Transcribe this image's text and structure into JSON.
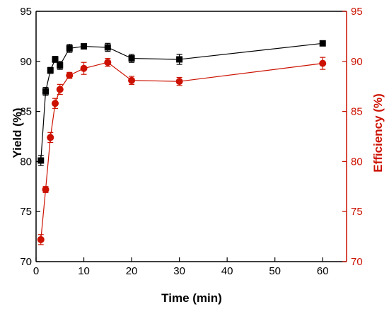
{
  "chart_data": {
    "type": "line",
    "xlabel": "Time (min)",
    "ylabel_left": "Yield (%)",
    "ylabel_right": "Efficiency (%)",
    "xlim": [
      0,
      65
    ],
    "ylim_left": [
      70,
      95
    ],
    "ylim_right": [
      70,
      95
    ],
    "x_ticks": [
      0,
      10,
      20,
      30,
      40,
      50,
      60
    ],
    "y_ticks": [
      70,
      75,
      80,
      85,
      90,
      95
    ],
    "grid": false,
    "x": [
      1,
      2,
      3,
      4,
      5,
      7,
      10,
      15,
      20,
      30,
      60
    ],
    "series": [
      {
        "axis": "left",
        "marker": "square",
        "color": "#000000",
        "values": [
          80.1,
          87.0,
          89.1,
          90.2,
          89.6,
          91.3,
          91.5,
          91.4,
          90.3,
          90.2,
          91.8
        ],
        "errors": [
          0.5,
          0.4,
          0.3,
          0.3,
          0.4,
          0.4,
          0.2,
          0.4,
          0.4,
          0.5,
          0.2
        ]
      },
      {
        "axis": "right",
        "marker": "circle",
        "color": "#cc1100",
        "values": [
          72.2,
          77.2,
          82.4,
          85.8,
          87.2,
          88.6,
          89.3,
          89.9,
          88.1,
          88.0,
          89.8
        ],
        "errors": [
          0.5,
          0.3,
          0.5,
          0.5,
          0.5,
          0.3,
          0.6,
          0.4,
          0.4,
          0.4,
          0.6
        ]
      }
    ]
  }
}
